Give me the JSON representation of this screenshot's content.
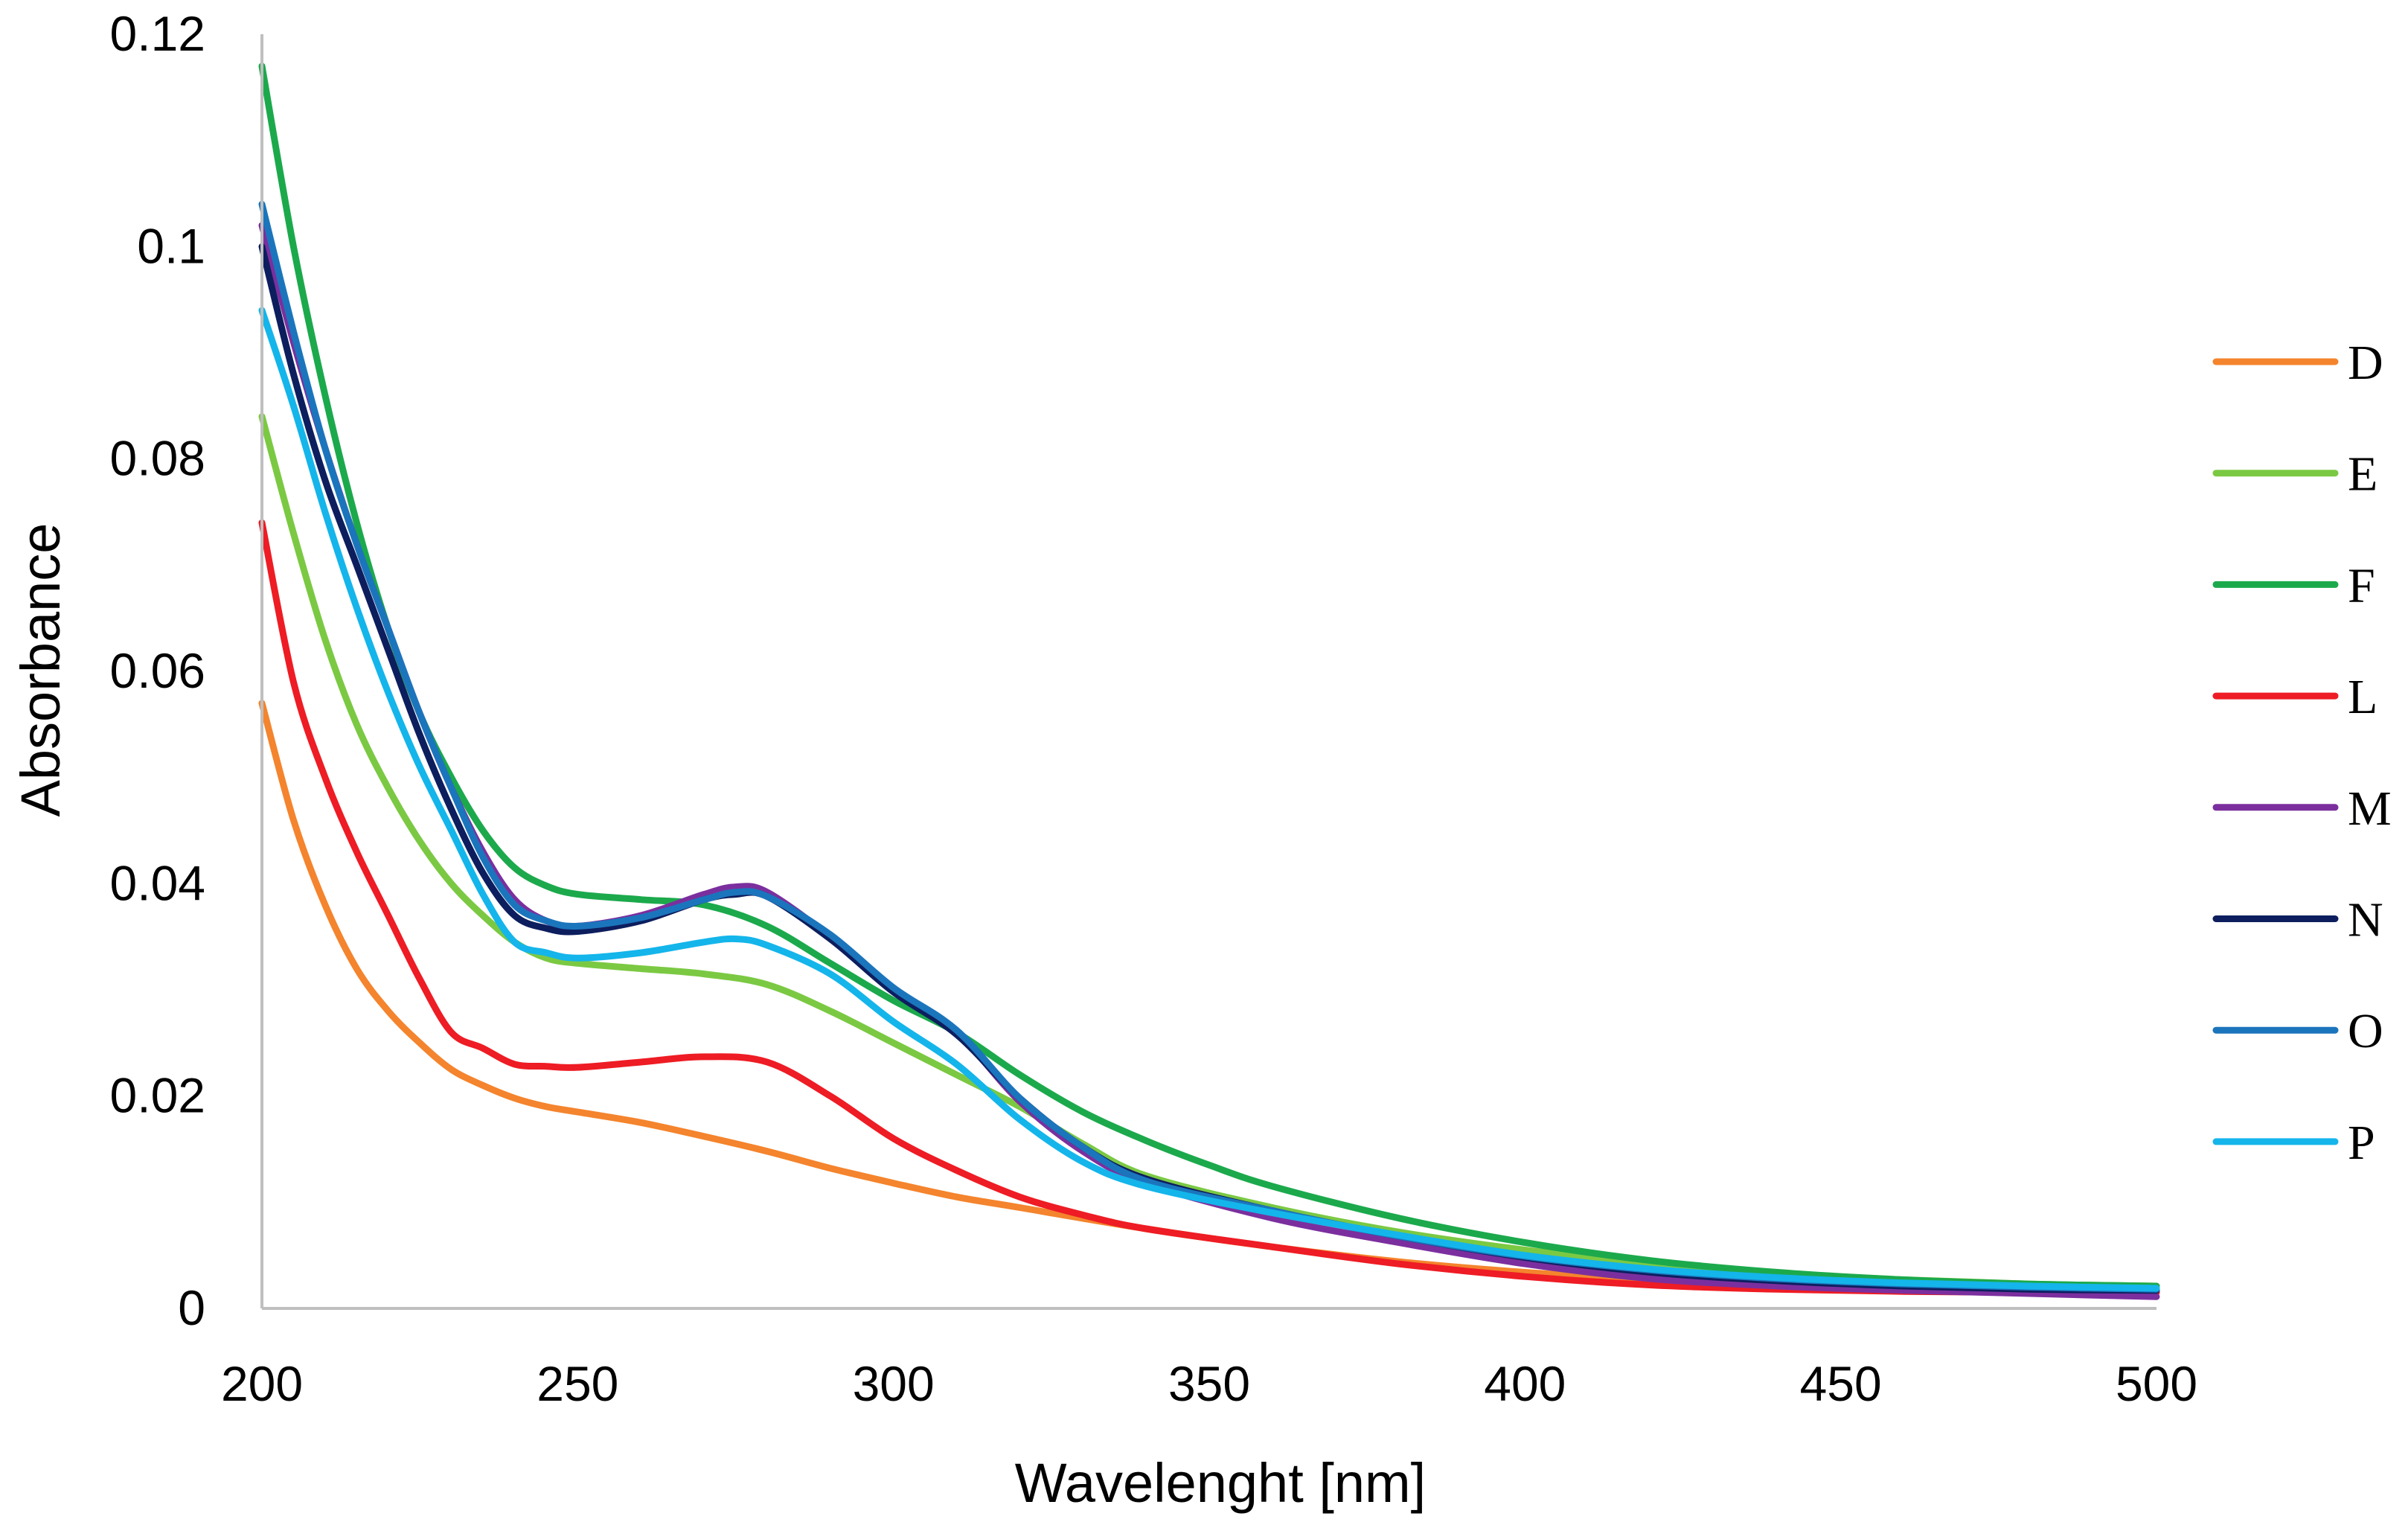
{
  "chart_data": {
    "type": "line",
    "title": "",
    "xlabel": "Wavelenght [nm]",
    "ylabel": "Absorbance",
    "xlim": [
      200,
      500
    ],
    "ylim": [
      0,
      0.12
    ],
    "xticks": [
      200,
      250,
      300,
      350,
      400,
      450,
      500
    ],
    "xtick_labels": [
      "200",
      "250",
      "300",
      "350",
      "400",
      "450",
      "500"
    ],
    "yticks": [
      0,
      0.02,
      0.04,
      0.06,
      0.08,
      0.1,
      0.12
    ],
    "ytick_labels": [
      "0",
      "0.02",
      "0.04",
      "0.06",
      "0.08",
      "0.1",
      "0.12"
    ],
    "grid": false,
    "legend_position": "right",
    "series": [
      {
        "name": "D",
        "color": "#F4842D",
        "x": [
          200,
          205,
          210,
          215,
          220,
          225,
          230,
          235,
          240,
          245,
          250,
          260,
          270,
          280,
          290,
          300,
          310,
          320,
          340,
          360,
          380,
          400,
          420,
          440,
          460,
          480,
          500
        ],
        "y": [
          0.057,
          0.046,
          0.038,
          0.032,
          0.028,
          0.025,
          0.0225,
          0.021,
          0.0198,
          0.019,
          0.0185,
          0.0175,
          0.0162,
          0.0148,
          0.0132,
          0.0118,
          0.0105,
          0.0095,
          0.0075,
          0.0058,
          0.0044,
          0.0034,
          0.0027,
          0.0022,
          0.0019,
          0.0017,
          0.0016
        ]
      },
      {
        "name": "E",
        "color": "#7BC943",
        "x": [
          200,
          205,
          210,
          215,
          220,
          225,
          230,
          235,
          240,
          245,
          250,
          260,
          270,
          280,
          290,
          300,
          310,
          320,
          330,
          340,
          360,
          380,
          400,
          420,
          440,
          460,
          480,
          500
        ],
        "y": [
          0.084,
          0.073,
          0.063,
          0.055,
          0.049,
          0.044,
          0.04,
          0.037,
          0.0345,
          0.033,
          0.0325,
          0.032,
          0.0315,
          0.0305,
          0.028,
          0.025,
          0.022,
          0.019,
          0.0155,
          0.0125,
          0.0095,
          0.0072,
          0.0055,
          0.0042,
          0.0033,
          0.0027,
          0.0023,
          0.0021
        ]
      },
      {
        "name": "F",
        "color": "#1CA94C",
        "x": [
          200,
          205,
          210,
          215,
          220,
          225,
          230,
          235,
          240,
          245,
          250,
          260,
          270,
          280,
          290,
          300,
          310,
          320,
          330,
          340,
          350,
          360,
          380,
          400,
          420,
          440,
          460,
          480,
          500
        ],
        "y": [
          0.117,
          0.1,
          0.086,
          0.074,
          0.064,
          0.056,
          0.05,
          0.045,
          0.0415,
          0.0398,
          0.039,
          0.0385,
          0.038,
          0.036,
          0.0325,
          0.029,
          0.026,
          0.022,
          0.0185,
          0.0158,
          0.0135,
          0.0115,
          0.0085,
          0.0062,
          0.0045,
          0.0034,
          0.0027,
          0.0023,
          0.0021
        ]
      },
      {
        "name": "L",
        "color": "#EE1C24",
        "x": [
          200,
          205,
          210,
          215,
          220,
          225,
          230,
          235,
          240,
          245,
          250,
          260,
          270,
          280,
          290,
          300,
          310,
          320,
          330,
          340,
          360,
          380,
          400,
          420,
          440,
          460,
          480,
          500
        ],
        "y": [
          0.074,
          0.059,
          0.05,
          0.043,
          0.037,
          0.031,
          0.026,
          0.0245,
          0.023,
          0.0228,
          0.0227,
          0.0232,
          0.0237,
          0.0232,
          0.02,
          0.016,
          0.013,
          0.0105,
          0.0088,
          0.0075,
          0.0058,
          0.0042,
          0.003,
          0.0022,
          0.0018,
          0.0016,
          0.0015,
          0.0015
        ]
      },
      {
        "name": "M",
        "color": "#7B2F9E",
        "x": [
          200,
          205,
          210,
          215,
          220,
          225,
          230,
          235,
          240,
          245,
          250,
          260,
          270,
          275,
          280,
          290,
          300,
          310,
          320,
          330,
          340,
          360,
          380,
          400,
          420,
          440,
          460,
          480,
          500
        ],
        "y": [
          0.102,
          0.091,
          0.081,
          0.072,
          0.064,
          0.056,
          0.049,
          0.043,
          0.0385,
          0.0365,
          0.036,
          0.037,
          0.039,
          0.0397,
          0.0392,
          0.035,
          0.03,
          0.026,
          0.0195,
          0.0148,
          0.0118,
          0.0085,
          0.0062,
          0.0042,
          0.0028,
          0.0021,
          0.0017,
          0.0014,
          0.0011
        ]
      },
      {
        "name": "N",
        "color": "#0D1E5E",
        "x": [
          200,
          205,
          210,
          215,
          220,
          225,
          230,
          235,
          240,
          245,
          250,
          260,
          270,
          275,
          280,
          290,
          300,
          310,
          320,
          330,
          340,
          360,
          380,
          400,
          420,
          440,
          460,
          480,
          500
        ],
        "y": [
          0.1,
          0.088,
          0.078,
          0.07,
          0.062,
          0.054,
          0.047,
          0.041,
          0.037,
          0.0358,
          0.0355,
          0.0365,
          0.0385,
          0.039,
          0.0388,
          0.0348,
          0.0298,
          0.0258,
          0.0198,
          0.0152,
          0.0122,
          0.0092,
          0.0068,
          0.0048,
          0.0034,
          0.0026,
          0.0021,
          0.0018,
          0.0017
        ]
      },
      {
        "name": "O",
        "color": "#1B75BC",
        "x": [
          200,
          205,
          210,
          215,
          220,
          225,
          230,
          235,
          240,
          245,
          250,
          260,
          270,
          275,
          280,
          290,
          300,
          310,
          320,
          330,
          340,
          360,
          380,
          400,
          420,
          440,
          460,
          480,
          500
        ],
        "y": [
          0.104,
          0.092,
          0.081,
          0.072,
          0.064,
          0.056,
          0.049,
          0.0425,
          0.038,
          0.0365,
          0.036,
          0.0368,
          0.0385,
          0.0392,
          0.0388,
          0.0352,
          0.0302,
          0.0262,
          0.0198,
          0.0152,
          0.012,
          0.0092,
          0.0068,
          0.0049,
          0.0036,
          0.0028,
          0.0023,
          0.002,
          0.0018
        ]
      },
      {
        "name": "P",
        "color": "#14B5EA",
        "x": [
          200,
          205,
          210,
          215,
          220,
          225,
          230,
          235,
          240,
          245,
          250,
          260,
          270,
          275,
          280,
          290,
          300,
          310,
          320,
          330,
          340,
          360,
          380,
          400,
          420,
          440,
          460,
          480,
          500
        ],
        "y": [
          0.094,
          0.085,
          0.075,
          0.066,
          0.058,
          0.051,
          0.045,
          0.039,
          0.0345,
          0.0335,
          0.033,
          0.0335,
          0.0345,
          0.0348,
          0.0342,
          0.0315,
          0.027,
          0.023,
          0.0178,
          0.0138,
          0.0115,
          0.009,
          0.0069,
          0.005,
          0.0037,
          0.0029,
          0.0024,
          0.0021,
          0.0019
        ]
      }
    ]
  }
}
